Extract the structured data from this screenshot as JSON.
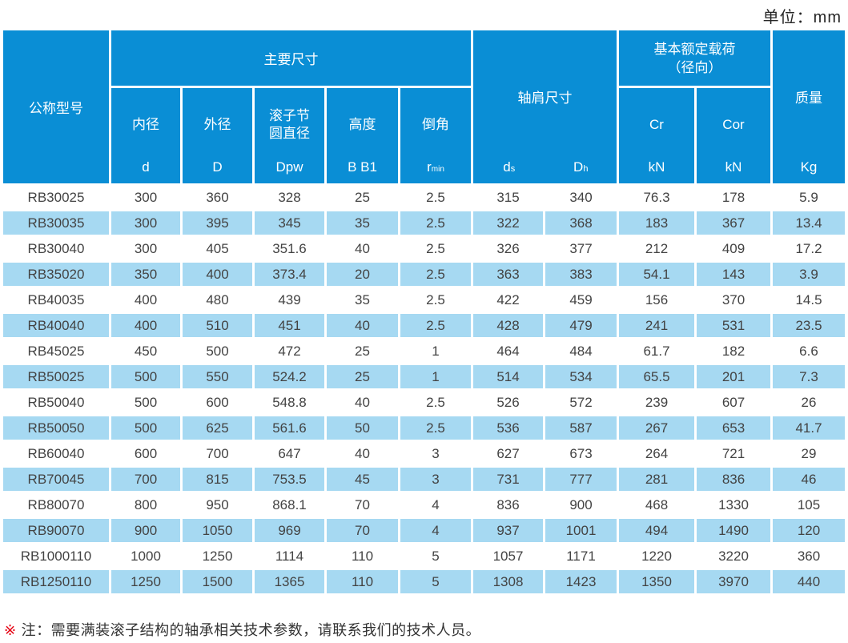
{
  "unit_label": "单位：mm",
  "colors": {
    "header_bg": "#0a8ed5",
    "row_alt_bg": "#a6d9f2",
    "row_bg": "#ffffff",
    "header_text": "#ffffff",
    "body_text": "#434343",
    "note_marker_color": "#e60012"
  },
  "header": {
    "model": "公称型号",
    "main_dims": "主要尺寸",
    "sub": [
      {
        "name": "内径",
        "sym": "d"
      },
      {
        "name": "外径",
        "sym": "D"
      },
      {
        "name": "滚子节",
        "name2": "圆直径",
        "sym": "Dpw"
      },
      {
        "name": "高度",
        "sym": "B B1"
      },
      {
        "name": "倒角",
        "sym": "r",
        "sym_sub": "min"
      }
    ],
    "shoulder": {
      "title": "轴肩尺寸",
      "col1": {
        "base": "d",
        "sub": "s"
      },
      "col2": {
        "base": "D",
        "sub": "h"
      }
    },
    "load": {
      "title_line1": "基本额定载荷",
      "title_line2": "（径向）",
      "col1": {
        "name": "Cr",
        "unit": "kN"
      },
      "col2": {
        "name": "Cor",
        "unit": "kN"
      }
    },
    "mass": {
      "title": "质量",
      "unit": "Kg"
    }
  },
  "rows": [
    [
      "RB30025",
      "300",
      "360",
      "328",
      "25",
      "2.5",
      "315",
      "340",
      "76.3",
      "178",
      "5.9"
    ],
    [
      "RB30035",
      "300",
      "395",
      "345",
      "35",
      "2.5",
      "322",
      "368",
      "183",
      "367",
      "13.4"
    ],
    [
      "RB30040",
      "300",
      "405",
      "351.6",
      "40",
      "2.5",
      "326",
      "377",
      "212",
      "409",
      "17.2"
    ],
    [
      "RB35020",
      "350",
      "400",
      "373.4",
      "20",
      "2.5",
      "363",
      "383",
      "54.1",
      "143",
      "3.9"
    ],
    [
      "RB40035",
      "400",
      "480",
      "439",
      "35",
      "2.5",
      "422",
      "459",
      "156",
      "370",
      "14.5"
    ],
    [
      "RB40040",
      "400",
      "510",
      "451",
      "40",
      "2.5",
      "428",
      "479",
      "241",
      "531",
      "23.5"
    ],
    [
      "RB45025",
      "450",
      "500",
      "472",
      "25",
      "1",
      "464",
      "484",
      "61.7",
      "182",
      "6.6"
    ],
    [
      "RB50025",
      "500",
      "550",
      "524.2",
      "25",
      "1",
      "514",
      "534",
      "65.5",
      "201",
      "7.3"
    ],
    [
      "RB50040",
      "500",
      "600",
      "548.8",
      "40",
      "2.5",
      "526",
      "572",
      "239",
      "607",
      "26"
    ],
    [
      "RB50050",
      "500",
      "625",
      "561.6",
      "50",
      "2.5",
      "536",
      "587",
      "267",
      "653",
      "41.7"
    ],
    [
      "RB60040",
      "600",
      "700",
      "647",
      "40",
      "3",
      "627",
      "673",
      "264",
      "721",
      "29"
    ],
    [
      "RB70045",
      "700",
      "815",
      "753.5",
      "45",
      "3",
      "731",
      "777",
      "281",
      "836",
      "46"
    ],
    [
      "RB80070",
      "800",
      "950",
      "868.1",
      "70",
      "4",
      "836",
      "900",
      "468",
      "1330",
      "105"
    ],
    [
      "RB90070",
      "900",
      "1050",
      "969",
      "70",
      "4",
      "937",
      "1001",
      "494",
      "1490",
      "120"
    ],
    [
      "RB1000110",
      "1000",
      "1250",
      "1114",
      "110",
      "5",
      "1057",
      "1171",
      "1220",
      "3220",
      "360"
    ],
    [
      "RB1250110",
      "1250",
      "1500",
      "1365",
      "110",
      "5",
      "1308",
      "1423",
      "1350",
      "3970",
      "440"
    ]
  ],
  "note": {
    "marker": "※",
    "text": "注：需要满装滚子结构的轴承相关技术参数，请联系我们的技术人员。"
  }
}
